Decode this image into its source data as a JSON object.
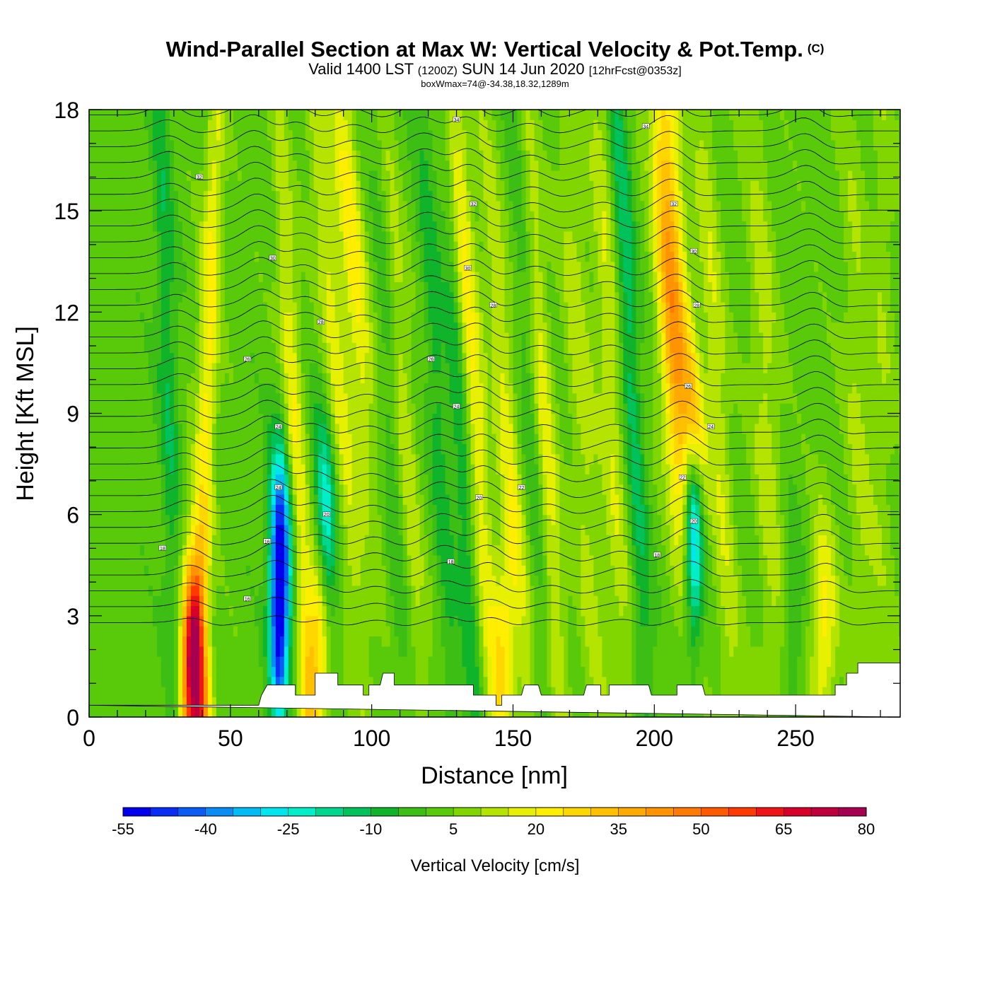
{
  "title": "Wind-Parallel Section at Max W: Vertical Velocity & Pot.Temp.",
  "copyright": "(C)",
  "subtitle_main": "Valid 1400 LST",
  "subtitle_zulu": "(1200Z)",
  "subtitle_date": "SUN 14 Jun 2020",
  "subtitle_fcst": "[12hrFcst@0353z]",
  "info": "boxWmax=74@-34.38,18.32,1289m",
  "chart_data": {
    "type": "heatmap",
    "xlabel": "Distance [nm]",
    "ylabel": "Height [Kft MSL]",
    "xlim": [
      0,
      287
    ],
    "ylim": [
      0,
      18
    ],
    "x_ticks": [
      "0",
      "50",
      "100",
      "150",
      "200",
      "250"
    ],
    "y_ticks": [
      "0",
      "3",
      "6",
      "9",
      "12",
      "15",
      "18"
    ],
    "colorbar": {
      "label": "Vertical Velocity [cm/s]",
      "tick_labels": [
        "-55",
        "-40",
        "-25",
        "-10",
        "5",
        "20",
        "35",
        "50",
        "65",
        "80"
      ],
      "levels": [
        -55,
        -50,
        -45,
        -40,
        -35,
        -30,
        -25,
        -20,
        -15,
        -10,
        -5,
        0,
        5,
        10,
        15,
        20,
        25,
        30,
        35,
        40,
        45,
        50,
        55,
        60,
        65,
        70,
        75,
        80
      ],
      "colors": [
        "#0000ee",
        "#0a2df5",
        "#0a5cf5",
        "#0a8cf5",
        "#00bef5",
        "#00e6ee",
        "#00eec8",
        "#00d68e",
        "#00c25a",
        "#10b42a",
        "#3cbe14",
        "#58ca0a",
        "#82d600",
        "#b4e400",
        "#e6f000",
        "#ffee00",
        "#ffd700",
        "#ffc000",
        "#ffaa00",
        "#ff9400",
        "#ff7a00",
        "#ff5a00",
        "#ff3a00",
        "#f01414",
        "#d8002a",
        "#c0003c",
        "#a80050"
      ]
    },
    "wave_bands_x_nm": [
      37,
      67,
      80,
      103,
      127,
      142,
      165,
      190,
      214,
      262
    ],
    "max_w_cm_s": 74,
    "theta_contour_labels": [
      {
        "text": "16",
        "x": 56,
        "y": 3.5
      },
      {
        "text": "16",
        "x": 63,
        "y": 5.2
      },
      {
        "text": "18",
        "x": 26,
        "y": 5.0
      },
      {
        "text": "18",
        "x": 128,
        "y": 4.6
      },
      {
        "text": "18",
        "x": 201,
        "y": 4.8
      },
      {
        "text": "20",
        "x": 84,
        "y": 6.0
      },
      {
        "text": "20",
        "x": 138,
        "y": 6.5
      },
      {
        "text": "20",
        "x": 214,
        "y": 5.8
      },
      {
        "text": "22",
        "x": 153,
        "y": 6.8
      },
      {
        "text": "22",
        "x": 210,
        "y": 7.1
      },
      {
        "text": "24",
        "x": 67,
        "y": 6.8
      },
      {
        "text": "24",
        "x": 67,
        "y": 8.6
      },
      {
        "text": "24",
        "x": 220,
        "y": 8.6
      },
      {
        "text": "24",
        "x": 130,
        "y": 9.2
      },
      {
        "text": "26",
        "x": 56,
        "y": 10.6
      },
      {
        "text": "26",
        "x": 121,
        "y": 10.6
      },
      {
        "text": "26",
        "x": 212,
        "y": 9.8
      },
      {
        "text": "28",
        "x": 82,
        "y": 11.7
      },
      {
        "text": "28",
        "x": 143,
        "y": 12.2
      },
      {
        "text": "28",
        "x": 215,
        "y": 12.2
      },
      {
        "text": "30",
        "x": 65,
        "y": 13.6
      },
      {
        "text": "30",
        "x": 134,
        "y": 13.3
      },
      {
        "text": "30",
        "x": 214,
        "y": 13.8
      },
      {
        "text": "32",
        "x": 39,
        "y": 16.0
      },
      {
        "text": "32",
        "x": 136,
        "y": 15.2
      },
      {
        "text": "32",
        "x": 207,
        "y": 15.2
      },
      {
        "text": "34",
        "x": 130,
        "y": 17.7
      },
      {
        "text": "34",
        "x": 197,
        "y": 17.5
      }
    ]
  }
}
